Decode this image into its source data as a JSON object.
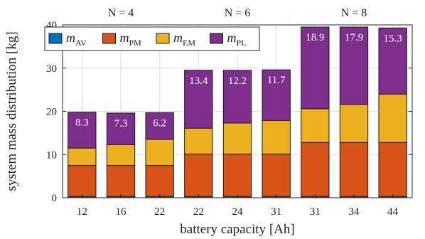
{
  "chart_data": {
    "type": "bar",
    "stacked": true,
    "xlabel": "battery capacity [Ah]",
    "ylabel": "system mass distribution [kg]",
    "ylim": [
      0,
      40
    ],
    "yticks": [
      0,
      10,
      20,
      30,
      40
    ],
    "grid": true,
    "legend_position": "top-left",
    "categories": [
      "12",
      "16",
      "22",
      "22",
      "24",
      "31",
      "31",
      "34",
      "44"
    ],
    "group_labels": [
      {
        "label": "N = 4",
        "categories": [
          0,
          1,
          2
        ]
      },
      {
        "label": "N = 6",
        "categories": [
          3,
          4,
          5
        ]
      },
      {
        "label": "N = 8",
        "categories": [
          6,
          7,
          8
        ]
      }
    ],
    "series": [
      {
        "name": "m",
        "subscript": "AV",
        "color": "#0072BD",
        "values": [
          0.3,
          0.3,
          0.3,
          0.3,
          0.3,
          0.3,
          0.3,
          0.3,
          0.3
        ]
      },
      {
        "name": "m",
        "subscript": "PM",
        "color": "#D95319",
        "values": [
          7.2,
          7.2,
          7.2,
          9.8,
          9.8,
          9.8,
          12.5,
          12.5,
          12.5
        ]
      },
      {
        "name": "m",
        "subscript": "EM",
        "color": "#EDB120",
        "values": [
          4.0,
          4.8,
          6.0,
          6.0,
          7.2,
          7.8,
          7.8,
          8.8,
          11.2
        ]
      },
      {
        "name": "m",
        "subscript": "PL",
        "color": "#7E2F8E",
        "values": [
          8.3,
          7.3,
          6.2,
          13.4,
          12.2,
          11.7,
          18.9,
          17.9,
          15.3
        ]
      }
    ],
    "data_labels": [
      "8.3",
      "7.3",
      "6.2",
      "13.4",
      "12.2",
      "11.7",
      "18.9",
      "17.9",
      "15.3"
    ]
  }
}
